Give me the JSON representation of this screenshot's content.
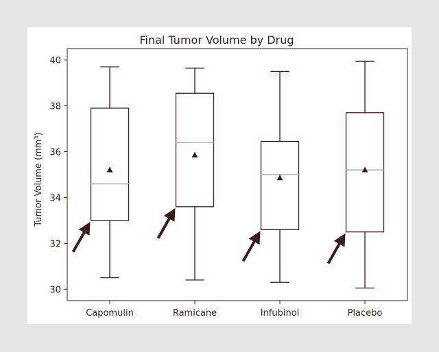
{
  "chart_data": {
    "type": "box",
    "title": "Final Tumor Volume by Drug",
    "xlabel": "",
    "ylabel": "Tumor Volume (mm³)",
    "ylim": [
      29.5,
      40.5
    ],
    "yticks": [
      30,
      32,
      34,
      36,
      38,
      40
    ],
    "ytick_labels": [
      "30",
      "32",
      "34",
      "36",
      "38",
      "40"
    ],
    "grid": false,
    "categories": [
      "Capomulin",
      "Ramicane",
      "Infubinol",
      "Placebo"
    ],
    "boxes": [
      {
        "name": "Capomulin",
        "whisker_low": 30.5,
        "q1": 33.0,
        "median": 34.6,
        "mean": 35.2,
        "q3": 37.9,
        "whisker_high": 39.7
      },
      {
        "name": "Ramicane",
        "whisker_low": 30.4,
        "q1": 33.6,
        "median": 36.4,
        "mean": 35.85,
        "q3": 38.55,
        "whisker_high": 39.65
      },
      {
        "name": "Infubinol",
        "whisker_low": 30.3,
        "q1": 32.6,
        "median": 35.0,
        "mean": 34.85,
        "q3": 36.45,
        "whisker_high": 39.5
      },
      {
        "name": "Placebo",
        "whisker_low": 30.05,
        "q1": 32.5,
        "median": 35.2,
        "mean": 35.2,
        "q3": 37.7,
        "whisker_high": 39.95
      }
    ],
    "annotations": [
      {
        "type": "arrow",
        "near": "Capomulin"
      },
      {
        "type": "arrow",
        "near": "Ramicane"
      },
      {
        "type": "arrow",
        "near": "Infubinol"
      },
      {
        "type": "arrow",
        "near": "Placebo"
      }
    ],
    "colors": {
      "box_line": "#3b1a1a",
      "median": "#c0c0c0",
      "mean_marker": "#3b1a1a",
      "arrow": "#3b1a1a",
      "axes": "#3b1a1a"
    }
  }
}
